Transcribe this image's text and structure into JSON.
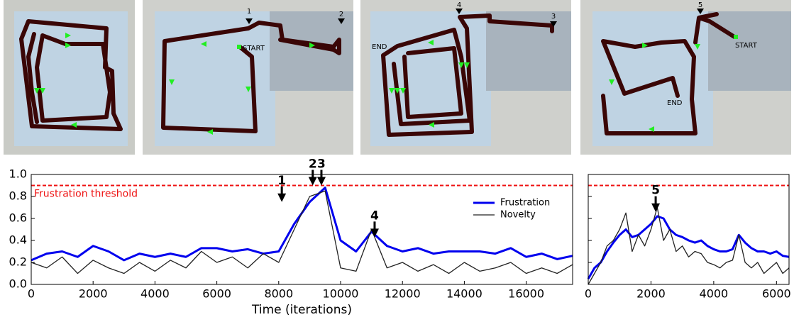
{
  "panels": [
    {
      "labels": []
    },
    {
      "labels": [
        "1",
        "2",
        "START"
      ]
    },
    {
      "labels": [
        "4",
        "3",
        "END"
      ]
    },
    {
      "labels": [
        "5",
        "START",
        "END"
      ]
    }
  ],
  "chart_data": [
    {
      "type": "line",
      "xlabel": "Time (iterations)",
      "x": [
        0,
        500,
        1000,
        1500,
        2000,
        2500,
        3000,
        3500,
        4000,
        4500,
        5000,
        5500,
        6000,
        6500,
        7000,
        7500,
        8000,
        8500,
        9000,
        9500,
        10000,
        10500,
        11000,
        11500,
        12000,
        12500,
        13000,
        13500,
        14000,
        14500,
        15000,
        15500,
        16000,
        16500,
        17000,
        17500
      ],
      "series": [
        {
          "name": "Frustration",
          "color": "#0000ee",
          "width": 3,
          "values": [
            0.22,
            0.28,
            0.3,
            0.25,
            0.35,
            0.3,
            0.22,
            0.28,
            0.25,
            0.28,
            0.25,
            0.33,
            0.33,
            0.3,
            0.32,
            0.28,
            0.3,
            0.55,
            0.75,
            0.88,
            0.4,
            0.3,
            0.48,
            0.35,
            0.3,
            0.33,
            0.28,
            0.3,
            0.3,
            0.3,
            0.28,
            0.33,
            0.25,
            0.28,
            0.23,
            0.26
          ]
        },
        {
          "name": "Novelty",
          "color": "#222222",
          "width": 1.3,
          "values": [
            0.2,
            0.15,
            0.25,
            0.1,
            0.22,
            0.15,
            0.1,
            0.2,
            0.12,
            0.22,
            0.15,
            0.3,
            0.2,
            0.25,
            0.15,
            0.28,
            0.2,
            0.5,
            0.8,
            0.85,
            0.15,
            0.12,
            0.5,
            0.15,
            0.2,
            0.12,
            0.18,
            0.1,
            0.2,
            0.12,
            0.15,
            0.2,
            0.1,
            0.15,
            0.1,
            0.18
          ]
        }
      ],
      "xlim": [
        0,
        17500
      ],
      "xticks": [
        0,
        2000,
        4000,
        6000,
        8000,
        10000,
        12000,
        14000,
        16000
      ],
      "ylim": [
        0,
        1
      ],
      "yticks": [
        {
          "value": 0,
          "label": "0.0"
        },
        {
          "value": 0.2,
          "label": "0.2"
        },
        {
          "value": 0.4,
          "label": "0.4"
        },
        {
          "value": 0.6,
          "label": "0.6"
        },
        {
          "value": 0.8,
          "label": "0.8"
        },
        {
          "value": 1,
          "label": "1.0"
        }
      ],
      "threshold": {
        "value": 0.9,
        "label": "Frustration threshold",
        "color": "#ee1111"
      },
      "legend": "upper right",
      "annotations": [
        {
          "label": "1",
          "x": 8100,
          "y": 0.75
        },
        {
          "label": "2",
          "x": 9100,
          "y": 0.9
        },
        {
          "label": "3",
          "x": 9380,
          "y": 0.9
        },
        {
          "label": "4",
          "x": 11100,
          "y": 0.43
        }
      ]
    },
    {
      "type": "line",
      "x": [
        0,
        200,
        400,
        600,
        800,
        1000,
        1200,
        1400,
        1600,
        1800,
        2000,
        2200,
        2400,
        2600,
        2800,
        3000,
        3200,
        3400,
        3600,
        3800,
        4000,
        4200,
        4400,
        4600,
        4800,
        5000,
        5200,
        5400,
        5600,
        5800,
        6000,
        6200,
        6400
      ],
      "series": [
        {
          "color": "#0000ee",
          "width": 3,
          "values": [
            0.05,
            0.15,
            0.2,
            0.3,
            0.38,
            0.45,
            0.5,
            0.43,
            0.45,
            0.5,
            0.55,
            0.62,
            0.6,
            0.5,
            0.45,
            0.43,
            0.4,
            0.38,
            0.4,
            0.35,
            0.32,
            0.3,
            0.3,
            0.32,
            0.45,
            0.38,
            0.33,
            0.3,
            0.3,
            0.28,
            0.3,
            0.26,
            0.25
          ]
        },
        {
          "color": "#222222",
          "width": 1.3,
          "values": [
            0,
            0.1,
            0.2,
            0.35,
            0.4,
            0.5,
            0.65,
            0.3,
            0.45,
            0.35,
            0.5,
            0.7,
            0.4,
            0.5,
            0.3,
            0.35,
            0.25,
            0.3,
            0.28,
            0.2,
            0.18,
            0.15,
            0.2,
            0.22,
            0.45,
            0.2,
            0.15,
            0.2,
            0.1,
            0.15,
            0.2,
            0.1,
            0.15
          ]
        }
      ],
      "xlim": [
        0,
        6400
      ],
      "xticks": [
        0,
        2000,
        4000,
        6000
      ],
      "ylim": [
        0,
        1
      ],
      "yticks": [
        0,
        0.2,
        0.4,
        0.6,
        0.8,
        1
      ],
      "ytick_labels": false,
      "threshold": {
        "value": 0.9,
        "color": "#ee1111"
      },
      "annotations": [
        {
          "label": "5",
          "x": 2150,
          "y": 0.66
        }
      ]
    }
  ]
}
